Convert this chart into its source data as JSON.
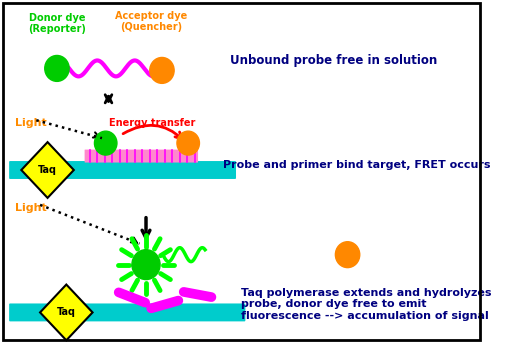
{
  "fig_width": 5.13,
  "fig_height": 3.43,
  "dpi": 100,
  "bg_color": "#ffffff",
  "border_color": "#000000",
  "colors": {
    "green": "#00cc00",
    "orange": "#ff8800",
    "magenta": "#ff00ff",
    "cyan": "#00cccc",
    "yellow": "#ffff00",
    "pink": "#ff88cc",
    "red": "#ff0000",
    "black": "#000000",
    "bright_green": "#00ff00",
    "dark_navy": "#000080"
  },
  "labels": {
    "donor_dye": "Donor dye\n(Reporter)",
    "acceptor_dye": "Acceptor dye\n(Quencher)",
    "unbound": "Unbound probe free in solution",
    "fret": "Probe and primer bind target, FRET occurs",
    "taq_extend": "Taq polymerase extends and hydrolyzes\nprobe, donor dye free to emit\nfluorescence --> accumulation of signal",
    "light1": "Light",
    "light2": "Light",
    "energy_transfer": "Energy transfer",
    "taq": "Taq"
  }
}
